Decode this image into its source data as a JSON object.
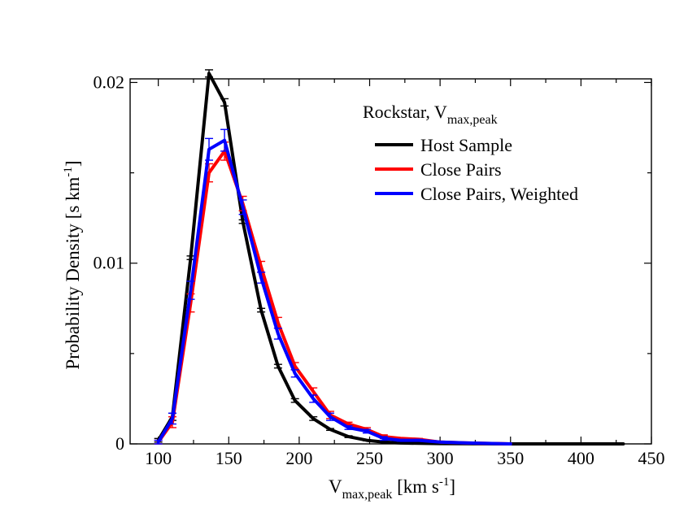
{
  "chart_data": {
    "type": "line",
    "legend_title": {
      "main": "Rockstar, V",
      "sub": "max,peak"
    },
    "legend_placement": "top-right",
    "xlabel": {
      "main": "V",
      "sub": "max,peak",
      "unit_pre": " [km s",
      "unit_sup": "-1",
      "unit_post": "]"
    },
    "ylabel": {
      "text": "Probability Density [s km",
      "sup": "-1",
      "post": "]"
    },
    "xlim": [
      80,
      450
    ],
    "ylim": [
      0,
      0.0202
    ],
    "x_ticks": [
      {
        "value": 100,
        "label": "100"
      },
      {
        "value": 150,
        "label": "150"
      },
      {
        "value": 200,
        "label": "200"
      },
      {
        "value": 250,
        "label": "250"
      },
      {
        "value": 300,
        "label": "300"
      },
      {
        "value": 350,
        "label": "350"
      },
      {
        "value": 400,
        "label": "400"
      },
      {
        "value": 450,
        "label": "450"
      }
    ],
    "y_ticks": [
      {
        "value": 0,
        "label": "0"
      },
      {
        "value": 0.01,
        "label": "0.01"
      },
      {
        "value": 0.02,
        "label": "0.02"
      }
    ],
    "x_minor_ticks": [
      125,
      175,
      225,
      275,
      325,
      375,
      425
    ],
    "y_minor_ticks": [
      0.005,
      0.015
    ],
    "grid": false,
    "series": [
      {
        "name": "Host Sample",
        "color": "#000000",
        "x": [
          100,
          110,
          123,
          136,
          147,
          160,
          173,
          185,
          197,
          210,
          222,
          235,
          248,
          260,
          272,
          285,
          300,
          320,
          350,
          380,
          410,
          430
        ],
        "y": [
          0.0002,
          0.0015,
          0.0103,
          0.0205,
          0.0189,
          0.0123,
          0.0074,
          0.0043,
          0.0024,
          0.0014,
          0.0008,
          0.0004,
          0.0002,
          0.0001,
          5e-05,
          3e-05,
          2e-05,
          1e-05,
          0.0,
          0.0,
          0.0,
          0.0
        ],
        "err": [
          0.0001,
          0.0002,
          0.0001,
          0.0002,
          0.0002,
          0.0001,
          0.0001,
          0.0001,
          0.0001,
          0.0001,
          5e-05,
          5e-05,
          3e-05,
          2e-05,
          1e-05,
          1e-05,
          1e-05,
          0.0,
          0.0,
          0.0,
          0.0,
          0.0
        ]
      },
      {
        "name": "Close Pairs",
        "color": "#ff0000",
        "x": [
          100,
          110,
          123,
          136,
          147,
          160,
          173,
          185,
          197,
          210,
          222,
          235,
          248,
          260,
          272,
          285,
          300,
          320,
          350
        ],
        "y": [
          0.0001,
          0.0012,
          0.0078,
          0.015,
          0.0162,
          0.0133,
          0.0098,
          0.0067,
          0.0043,
          0.0029,
          0.0016,
          0.0011,
          0.0008,
          0.0004,
          0.0003,
          0.00025,
          0.0001,
          5e-05,
          0.0
        ],
        "err": [
          0.0001,
          0.0003,
          0.0005,
          0.0005,
          0.0005,
          0.0004,
          0.0003,
          0.0003,
          0.0002,
          0.0002,
          0.0002,
          0.0001,
          0.0001,
          0.0001,
          5e-05,
          5e-05,
          3e-05,
          2e-05,
          0.0
        ]
      },
      {
        "name": "Close Pairs, Weighted",
        "color": "#0000ff",
        "x": [
          100,
          110,
          123,
          136,
          147,
          160,
          173,
          185,
          197,
          210,
          222,
          235,
          248,
          260,
          272,
          285,
          300,
          320,
          350
        ],
        "y": [
          0.0001,
          0.0014,
          0.0085,
          0.0163,
          0.0168,
          0.0131,
          0.0092,
          0.0061,
          0.0039,
          0.0025,
          0.0015,
          0.0009,
          0.0007,
          0.0003,
          0.0002,
          0.0002,
          0.0001,
          5e-05,
          0.0
        ],
        "err": [
          0.0001,
          0.0003,
          0.0005,
          0.0006,
          0.0006,
          0.0004,
          0.0003,
          0.0003,
          0.0002,
          0.0002,
          0.0002,
          0.0001,
          0.0001,
          0.0001,
          5e-05,
          5e-05,
          3e-05,
          2e-05,
          0.0
        ]
      }
    ]
  }
}
